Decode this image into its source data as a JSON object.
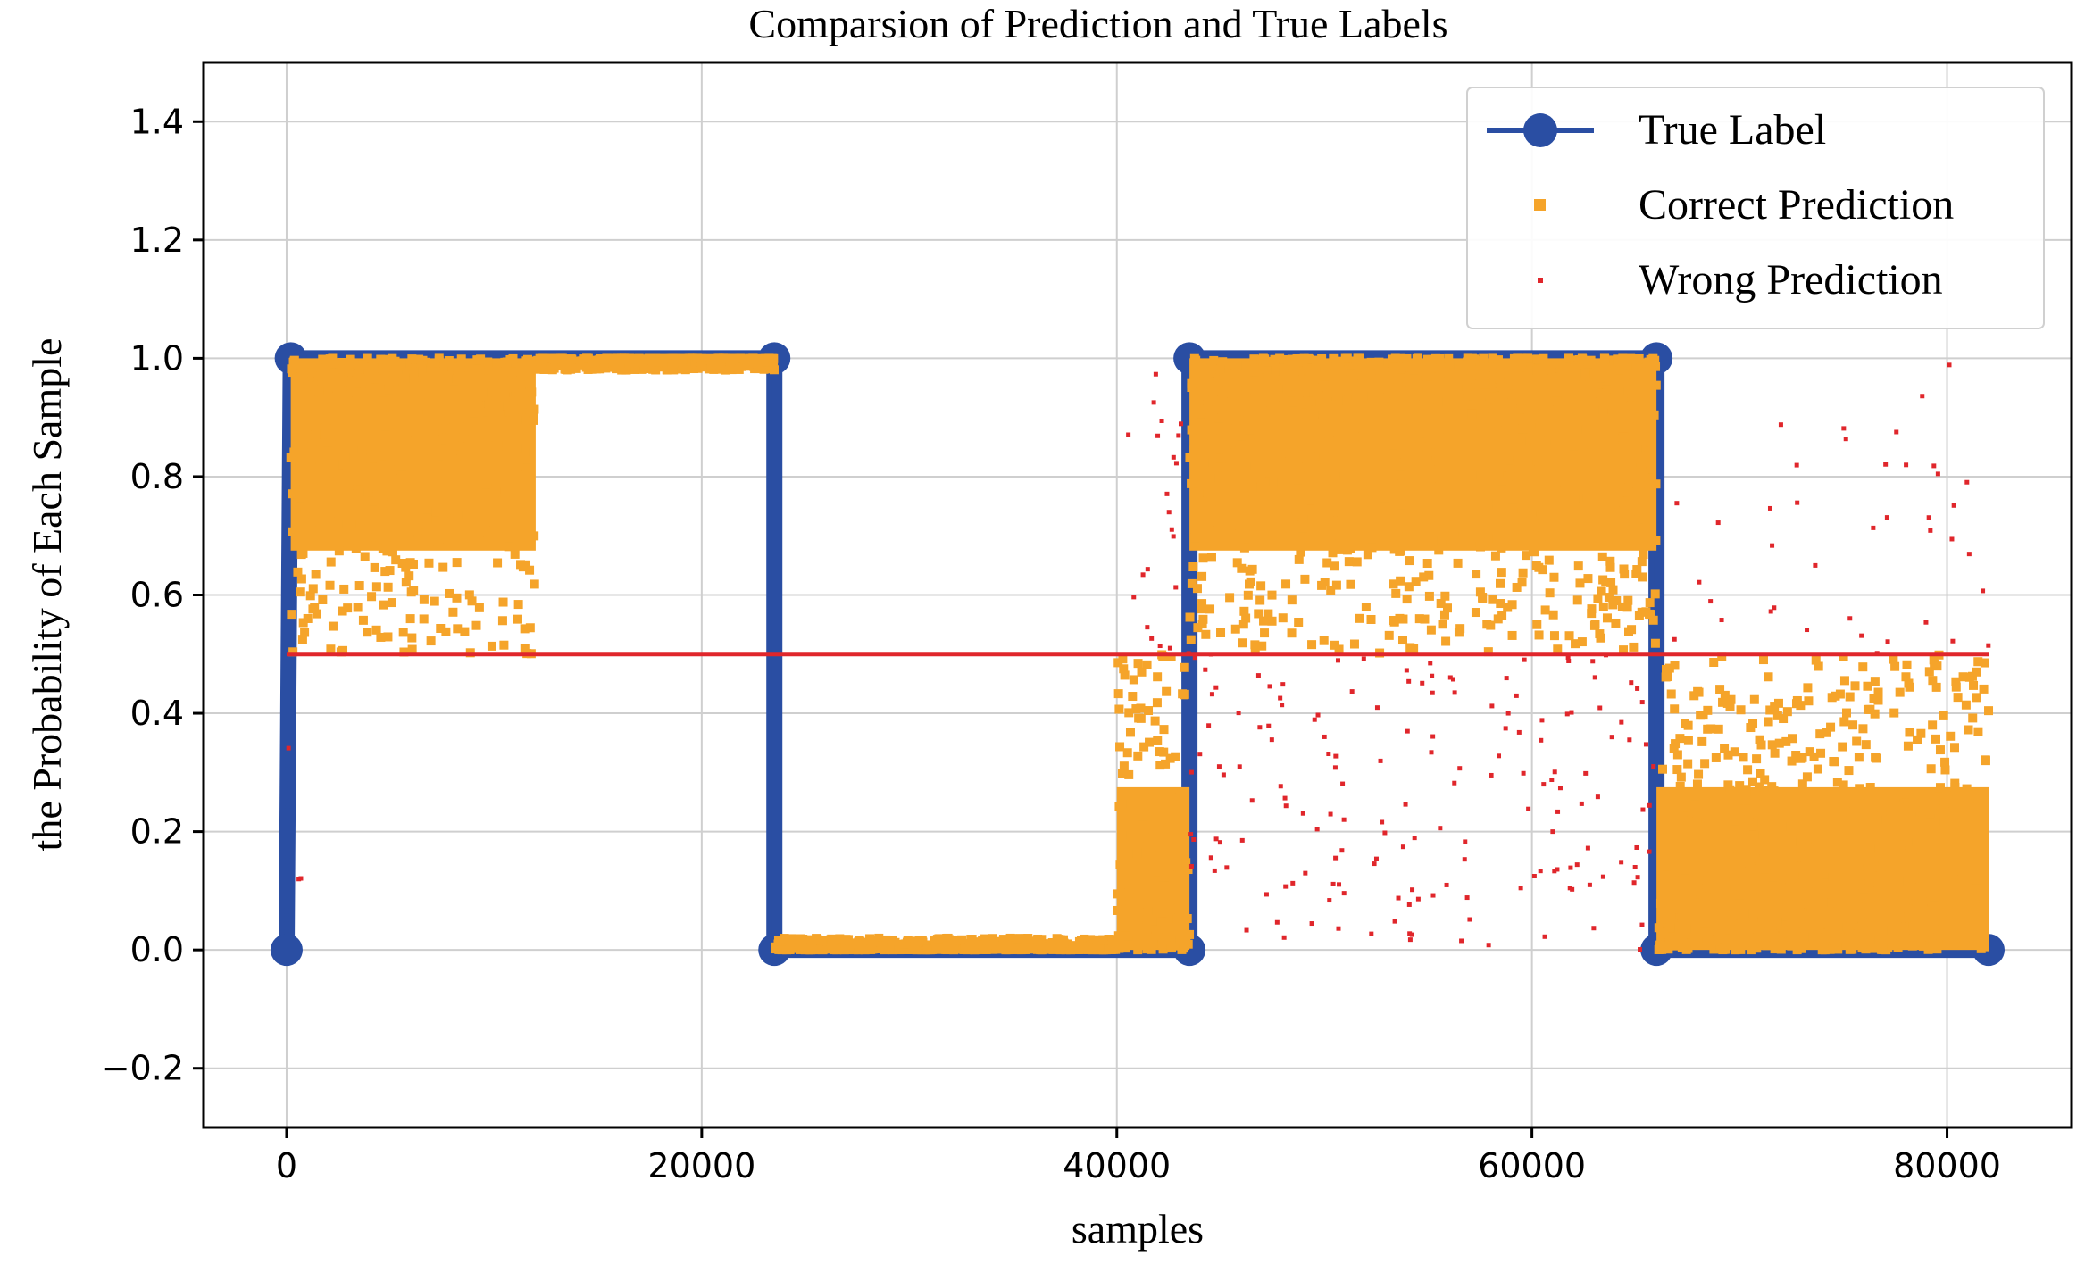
{
  "chart_data": {
    "type": "line",
    "title": "Comparsion of Prediction and True Labels",
    "xlabel": "samples",
    "ylabel": "the Probability of Each Sample",
    "xlim": [
      -4000,
      86000
    ],
    "ylim": [
      -0.3,
      1.5
    ],
    "xticks": [
      0,
      20000,
      40000,
      60000,
      80000
    ],
    "xtick_labels": [
      "0",
      "20000",
      "40000",
      "60000",
      "80000"
    ],
    "yticks": [
      -0.2,
      0.0,
      0.2,
      0.4,
      0.6,
      0.8,
      1.0,
      1.2,
      1.4
    ],
    "ytick_labels": [
      "−0.2",
      "0.0",
      "0.2",
      "0.4",
      "0.6",
      "0.8",
      "1.0",
      "1.2",
      "1.4"
    ],
    "grid": true,
    "legend_position": "upper-right",
    "threshold": {
      "y": 0.5,
      "x_range": [
        0,
        82000
      ],
      "color": "#e0262b"
    },
    "series": [
      {
        "name": "True Label",
        "kind": "step-line",
        "color": "#2a4ea3",
        "x": [
          0,
          200,
          23500,
          23500,
          43500,
          43500,
          66000,
          66000,
          82000
        ],
        "y": [
          0,
          1,
          1,
          0,
          0,
          1,
          1,
          0,
          0
        ]
      },
      {
        "name": "Correct Prediction",
        "kind": "scatter",
        "color": "#f5a42a",
        "segments": [
          {
            "x_range": [
              200,
              12000
            ],
            "y_range": [
              0.5,
              1.0
            ],
            "density": "high"
          },
          {
            "x_range": [
              12000,
              23500
            ],
            "y_range": [
              0.98,
              1.0
            ],
            "density": "high"
          },
          {
            "x_range": [
              23500,
              40000
            ],
            "y_range": [
              0.0,
              0.02
            ],
            "density": "high"
          },
          {
            "x_range": [
              40000,
              43500
            ],
            "y_range": [
              0.0,
              0.5
            ],
            "density": "high"
          },
          {
            "x_range": [
              43500,
              66000
            ],
            "y_range": [
              0.5,
              1.0
            ],
            "density": "high"
          },
          {
            "x_range": [
              66000,
              82000
            ],
            "y_range": [
              0.0,
              0.5
            ],
            "density": "high"
          }
        ]
      },
      {
        "name": "Wrong Prediction",
        "kind": "scatter",
        "color": "#e0262b",
        "segments": [
          {
            "x_range": [
              0,
              1000
            ],
            "y_range": [
              0.0,
              0.5
            ],
            "density": "low"
          },
          {
            "x_range": [
              40500,
              43500
            ],
            "y_range": [
              0.5,
              1.0
            ],
            "density": "medium"
          },
          {
            "x_range": [
              43500,
              66000
            ],
            "y_range": [
              0.0,
              0.5
            ],
            "density": "medium"
          },
          {
            "x_range": [
              66000,
              82000
            ],
            "y_range": [
              0.5,
              1.0
            ],
            "density": "low"
          }
        ]
      }
    ]
  }
}
